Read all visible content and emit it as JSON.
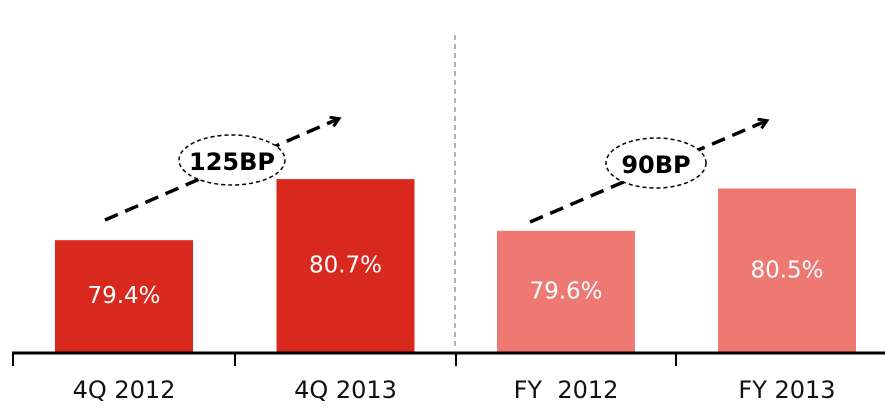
{
  "chart_data": {
    "type": "bar",
    "categories": [
      "4Q 2012",
      "4Q 2013",
      "FY  2012",
      "FY 2013"
    ],
    "values": [
      79.4,
      80.7,
      79.6,
      80.5
    ],
    "value_labels": [
      "79.4%",
      "80.7%",
      "79.6%",
      "80.5%"
    ],
    "colors": [
      "#d9281e",
      "#d9281e",
      "#ee7872",
      "#ee7872"
    ],
    "ylim": [
      77,
      84
    ],
    "annotations": [
      "125BP",
      "90BP"
    ]
  }
}
